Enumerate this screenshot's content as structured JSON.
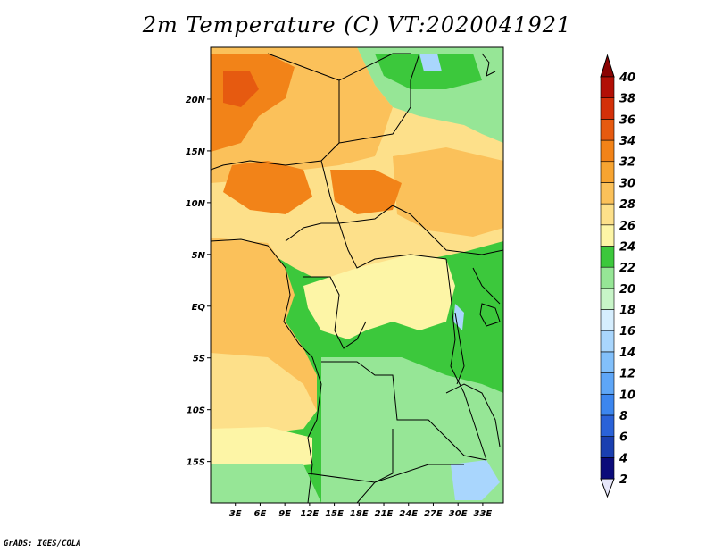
{
  "title": "2m Temperature (C) VT:2020041921",
  "credit": "GrADS: IGES/COLA",
  "map": {
    "lon_range": [
      0,
      35.5
    ],
    "lat_range": [
      -19,
      25
    ],
    "lon_ticks": [
      {
        "value": 3,
        "label": "3E"
      },
      {
        "value": 6,
        "label": "6E"
      },
      {
        "value": 9,
        "label": "9E"
      },
      {
        "value": 12,
        "label": "12E"
      },
      {
        "value": 15,
        "label": "15E"
      },
      {
        "value": 18,
        "label": "18E"
      },
      {
        "value": 21,
        "label": "21E"
      },
      {
        "value": 24,
        "label": "24E"
      },
      {
        "value": 27,
        "label": "27E"
      },
      {
        "value": 30,
        "label": "30E"
      },
      {
        "value": 33,
        "label": "33E"
      }
    ],
    "lat_ticks": [
      {
        "value": 20,
        "label": "20N"
      },
      {
        "value": 15,
        "label": "15N"
      },
      {
        "value": 10,
        "label": "10N"
      },
      {
        "value": 5,
        "label": "5N"
      },
      {
        "value": 0,
        "label": "EQ"
      },
      {
        "value": -5,
        "label": "5S"
      },
      {
        "value": -10,
        "label": "10S"
      },
      {
        "value": -15,
        "label": "15S"
      }
    ]
  },
  "colorbar": {
    "levels": [
      2,
      4,
      6,
      8,
      10,
      12,
      14,
      16,
      18,
      20,
      22,
      24,
      26,
      28,
      30,
      32,
      34,
      36,
      38,
      40
    ],
    "labels": [
      "2",
      "4",
      "6",
      "8",
      "10",
      "12",
      "14",
      "16",
      "18",
      "20",
      "22",
      "24",
      "26",
      "28",
      "30",
      "32",
      "34",
      "36",
      "38",
      "40"
    ],
    "colors": [
      "#e6e6fa",
      "#0b0b7a",
      "#1a3fb0",
      "#2a62d8",
      "#3c86ef",
      "#5ea6f7",
      "#82c0fb",
      "#a9d6fd",
      "#d6eefe",
      "#c8f5c8",
      "#96e696",
      "#3cc83c",
      "#fdf5a6",
      "#fde08a",
      "#fbc15a",
      "#f7a431",
      "#f28318",
      "#e65a10",
      "#d33009",
      "#b20f06",
      "#8a0303"
    ]
  }
}
